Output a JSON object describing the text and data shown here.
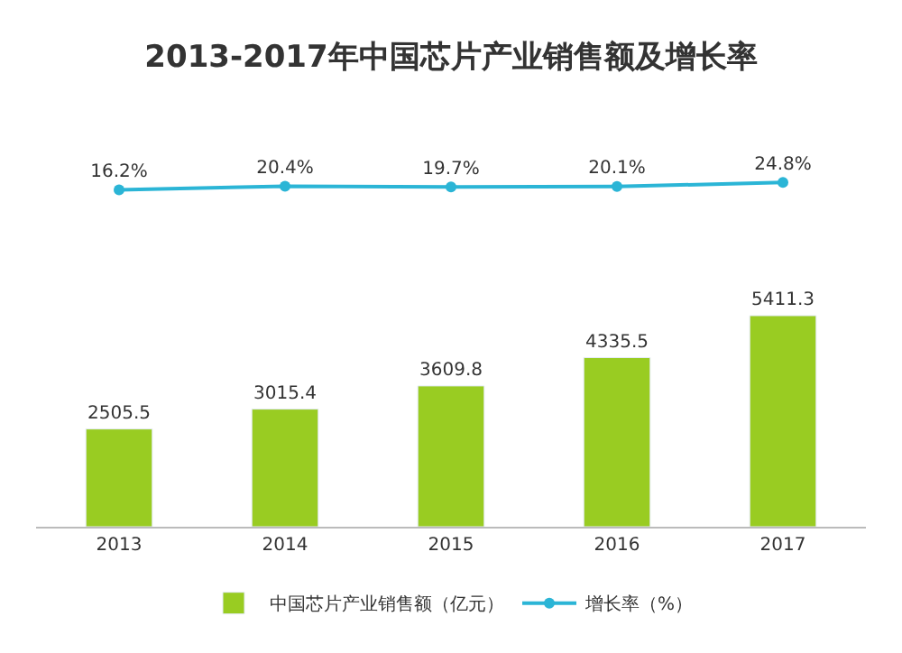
{
  "chart_data": [
    {
      "type": "line",
      "title": "2013-2017年中国芯片产业销售额及增长率",
      "categories": [
        "2013",
        "2014",
        "2015",
        "2016",
        "2017"
      ],
      "tick_labels": false,
      "marker": "circle",
      "series": [
        {
          "name": "增长率（%）",
          "color": "#2bb5d6",
          "values": [
            16.2,
            20.4,
            19.7,
            20.1,
            24.8
          ],
          "value_labels": [
            "16.2%",
            "20.4%",
            "19.7%",
            "20.1%",
            "24.8%"
          ]
        }
      ]
    },
    {
      "type": "bar",
      "categories": [
        "2013",
        "2014",
        "2015",
        "2016",
        "2017"
      ],
      "data_labels": true,
      "legend": "bottom",
      "tick_labels": "x",
      "series": [
        {
          "name": "中国芯片产业销售额（亿元）",
          "color": "#99cc22",
          "values": [
            2505.5,
            3015.4,
            3609.8,
            4335.5,
            5411.3
          ]
        }
      ]
    }
  ]
}
